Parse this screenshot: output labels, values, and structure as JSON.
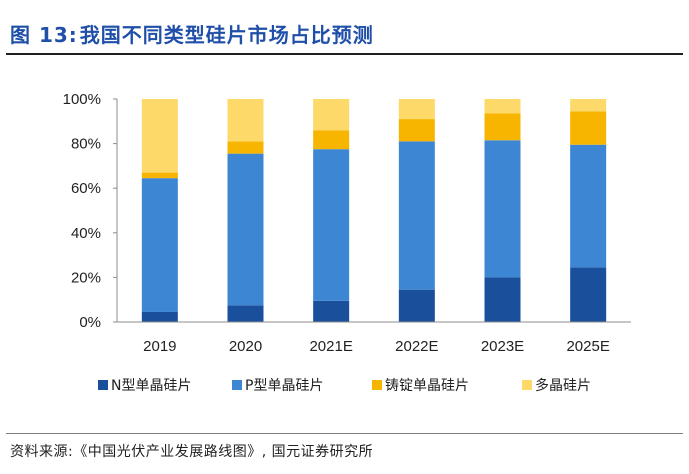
{
  "header": {
    "figure_label": "图 13:",
    "title_text": "我国不同类型硅片市场占比预测"
  },
  "footer": {
    "source": "资料来源:《中国光伏产业发展路线图》, 国元证券研究所"
  },
  "chart_data": {
    "type": "bar",
    "stacked": true,
    "title": "我国不同类型硅片市场占比预测",
    "xlabel": "",
    "ylabel": "",
    "ylim": [
      0,
      100
    ],
    "y_ticks": [
      0,
      20,
      40,
      60,
      80,
      100
    ],
    "y_tick_labels": [
      "0%",
      "20%",
      "40%",
      "60%",
      "80%",
      "100%"
    ],
    "categories": [
      "2019",
      "2020",
      "2021E",
      "2022E",
      "2023E",
      "2025E"
    ],
    "series": [
      {
        "name": "N型单晶硅片",
        "color": "#1a4f9c",
        "values": [
          4.5,
          7.5,
          9.5,
          14.5,
          20,
          24.5
        ]
      },
      {
        "name": "P型单晶硅片",
        "color": "#3d86d4",
        "values": [
          60,
          68,
          68,
          66.5,
          61.5,
          55
        ]
      },
      {
        "name": "铸锭单晶硅片",
        "color": "#f7b500",
        "values": [
          2.5,
          5.5,
          8.5,
          10,
          12,
          15
        ]
      },
      {
        "name": "多晶硅片",
        "color": "#fdd96a",
        "values": [
          33,
          19,
          14,
          9,
          6.5,
          5.5
        ]
      }
    ],
    "legend_position": "bottom",
    "grid": false
  }
}
